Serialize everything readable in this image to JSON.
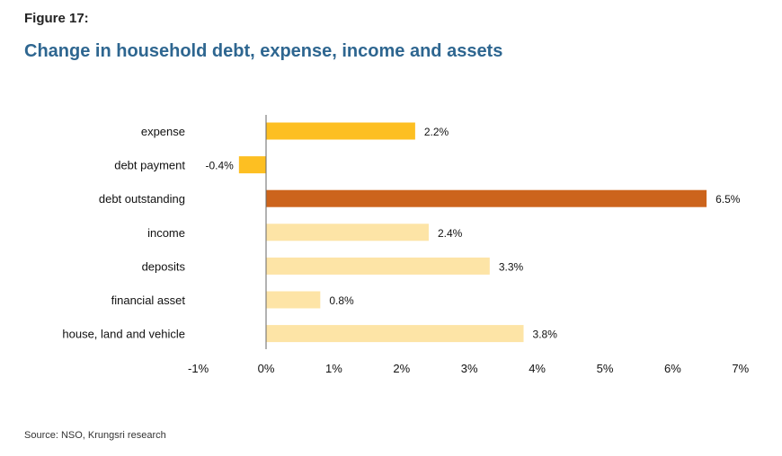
{
  "figure_label": "Figure 17:",
  "source": "Source: NSO, Krungsri research",
  "colors": {
    "expense_group": "#fdbf22",
    "debt_outstanding": "#cc641c",
    "assets_group": "#fde4a6",
    "title": "#2e6690"
  },
  "chart_data": {
    "type": "bar",
    "orientation": "horizontal",
    "title": "Change in household debt, expense, income and assets",
    "categories": [
      "expense",
      "debt payment",
      "debt outstanding",
      "income",
      "deposits",
      "financial asset",
      "house, land and vehicle"
    ],
    "values": [
      2.2,
      -0.4,
      6.5,
      2.4,
      3.3,
      0.8,
      3.8
    ],
    "data_labels": [
      "2.2%",
      "-0.4%",
      "6.5%",
      "2.4%",
      "3.3%",
      "0.8%",
      "3.8%"
    ],
    "bar_colors": [
      "#fdbf22",
      "#fdbf22",
      "#cc641c",
      "#fde4a6",
      "#fde4a6",
      "#fde4a6",
      "#fde4a6"
    ],
    "xlim": [
      -1,
      7
    ],
    "x_ticks": [
      -1,
      0,
      1,
      2,
      3,
      4,
      5,
      6,
      7
    ],
    "x_tick_labels": [
      "-1%",
      "0%",
      "1%",
      "2%",
      "3%",
      "4%",
      "5%",
      "6%",
      "7%"
    ],
    "xlabel": "",
    "ylabel": "",
    "grid": false
  }
}
